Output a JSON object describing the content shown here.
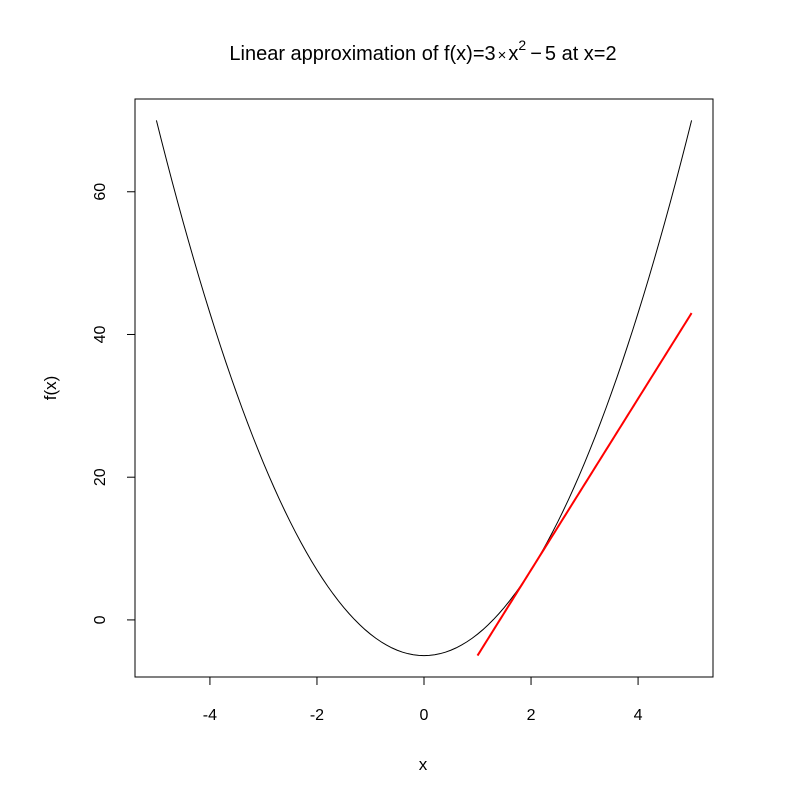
{
  "chart_data": {
    "type": "line",
    "title": {
      "prefix": "Linear approximation of f(x)=3",
      "times": "×",
      "base": "x",
      "superscript": "2",
      "minus": "−",
      "suffix": "5 at x=2"
    },
    "xlabel": "x",
    "ylabel": "f(x)",
    "xlim": [
      -5.4,
      5.4
    ],
    "ylim": [
      -8.0,
      73.0
    ],
    "x_ticks": [
      -4,
      -2,
      0,
      2,
      4
    ],
    "y_ticks": [
      0,
      20,
      40,
      60
    ],
    "grid": false,
    "series": [
      {
        "function": "3*x^2 - 5",
        "x_range": [
          -5,
          5
        ],
        "color": "#000000"
      },
      {
        "function": "12*x - 17",
        "x_range": [
          1,
          5
        ],
        "color": "#ff0000"
      }
    ]
  }
}
